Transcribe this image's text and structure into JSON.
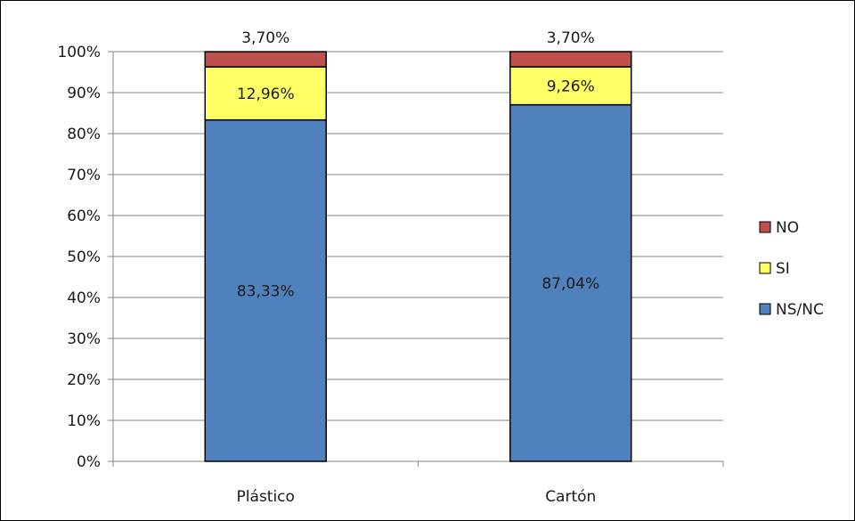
{
  "chart_data": {
    "type": "bar",
    "stacked": true,
    "categories": [
      "Plástico",
      "Cartón"
    ],
    "series": [
      {
        "name": "NS/NC",
        "color": "#4f81bd",
        "values": [
          83.33,
          87.04
        ],
        "labels": [
          "83,33%",
          "87,04%"
        ]
      },
      {
        "name": "SI",
        "color": "#ffff66",
        "values": [
          12.96,
          9.26
        ],
        "labels": [
          "12,96%",
          "9,26%"
        ]
      },
      {
        "name": "NO",
        "color": "#c0504d",
        "values": [
          3.7,
          3.7
        ],
        "labels": [
          "3,70%",
          "3,70%"
        ]
      }
    ],
    "ylim": [
      0,
      100
    ],
    "yticks": [
      "0%",
      "10%",
      "20%",
      "30%",
      "40%",
      "50%",
      "60%",
      "70%",
      "80%",
      "90%",
      "100%"
    ],
    "grid": true,
    "legend": {
      "position": "right",
      "order": [
        "NO",
        "SI",
        "NS/NC"
      ]
    },
    "title": "",
    "xlabel": "",
    "ylabel": ""
  }
}
